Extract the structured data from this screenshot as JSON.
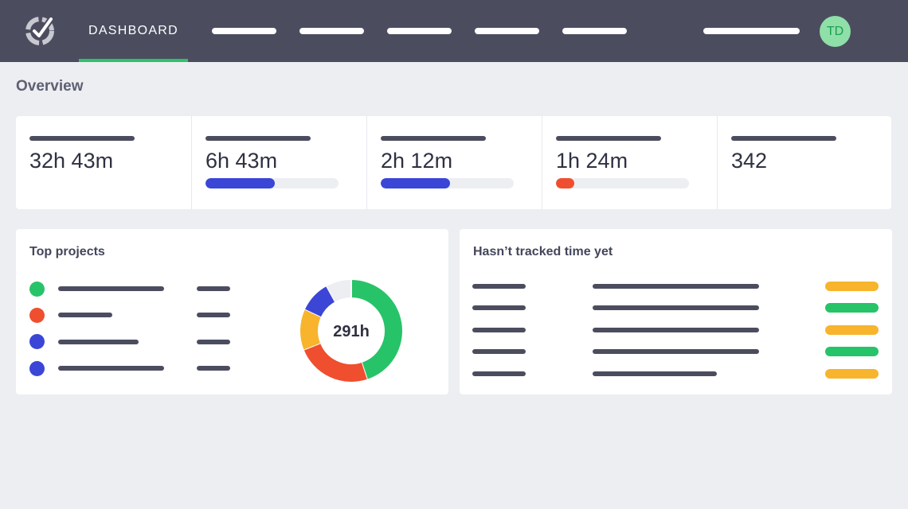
{
  "nav": {
    "active_label": "DASHBOARD",
    "avatar_initials": "TD"
  },
  "overview": {
    "title": "Overview",
    "stats": [
      {
        "value": "32h 43m"
      },
      {
        "value": "6h 43m",
        "progress": 0.52,
        "color": "#3b46d6"
      },
      {
        "value": "2h 12m",
        "progress": 0.52,
        "color": "#3b46d6"
      },
      {
        "value": "1h 24m",
        "progress": 0.14,
        "color": "#ef4f2f"
      },
      {
        "value": "342"
      }
    ]
  },
  "top_projects": {
    "title": "Top projects",
    "items": [
      {
        "color": "#27c368"
      },
      {
        "color": "#ef4f2f"
      },
      {
        "color": "#3b46d6"
      },
      {
        "color": "#3b46d6"
      }
    ],
    "total_label": "291h",
    "donut_segments": [
      {
        "color": "#27c368",
        "fraction": 0.45
      },
      {
        "color": "#ef4f2f",
        "fraction": 0.24
      },
      {
        "color": "#f7b42c",
        "fraction": 0.13
      },
      {
        "color": "#3b46d6",
        "fraction": 0.1
      },
      {
        "color": "#edeef2",
        "fraction": 0.08
      }
    ]
  },
  "untracked": {
    "title": "Hasn’t tracked time yet",
    "rows": [
      {
        "status_color": "#f7b42c"
      },
      {
        "status_color": "#27c368"
      },
      {
        "status_color": "#f7b42c"
      },
      {
        "status_color": "#27c368"
      },
      {
        "status_color": "#f7b42c"
      }
    ]
  }
}
